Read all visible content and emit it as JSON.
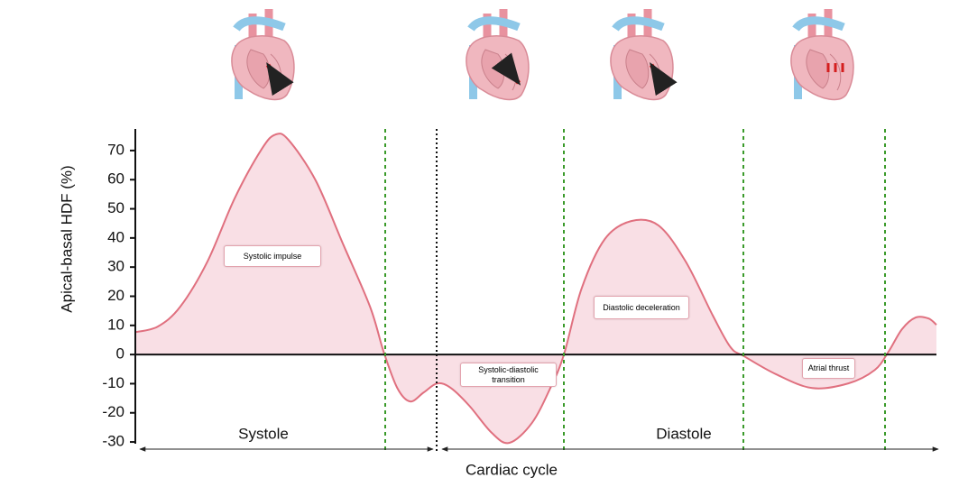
{
  "chart_data": {
    "type": "line",
    "y_label": "Apical-basal HDF (%)",
    "x_label": "Cardiac cycle",
    "phases": [
      "Systole",
      "Diastole"
    ],
    "annotations": [
      "Systolic impulse",
      "Systolic-diastolic transition",
      "Diastolic deceleration",
      "Atrial thrust"
    ],
    "x": [
      0,
      2.8,
      5.6,
      9.0,
      12.4,
      15.8,
      17.5,
      19.1,
      22.5,
      25.9,
      29.3,
      31.0,
      32.7,
      34.3,
      36.0,
      37.7,
      39.4,
      41.7,
      44.5,
      46.7,
      49.5,
      51.8,
      53.5,
      55.7,
      58.6,
      61.9,
      65.3,
      68.7,
      72.1,
      74.3,
      76.0,
      80.0,
      84.5,
      89.0,
      92.3,
      94.0,
      95.7,
      97.4,
      99.0,
      100
    ],
    "values": [
      7.7,
      9.6,
      16.4,
      31.9,
      53.6,
      70.6,
      75.5,
      73.7,
      59.8,
      38.1,
      16.4,
      0.9,
      -11.5,
      -16.1,
      -13.0,
      -9.9,
      -11.5,
      -17.6,
      -26.9,
      -30.3,
      -23.5,
      -11.5,
      0,
      22.6,
      39.6,
      45.8,
      44.3,
      31.9,
      13.3,
      2.5,
      -0.6,
      -6.8,
      -11.5,
      -9.9,
      -5.3,
      0.9,
      8.7,
      12.7,
      12.4,
      10.2
    ],
    "color": "#e0707f",
    "fill": "#f9dfe5",
    "xlim": [
      0,
      100
    ],
    "ylim": [
      -30.6,
      77.4
    ],
    "yticks": [
      -30,
      -20,
      -10,
      0,
      10,
      20,
      30,
      40,
      50,
      60,
      70
    ]
  }
}
